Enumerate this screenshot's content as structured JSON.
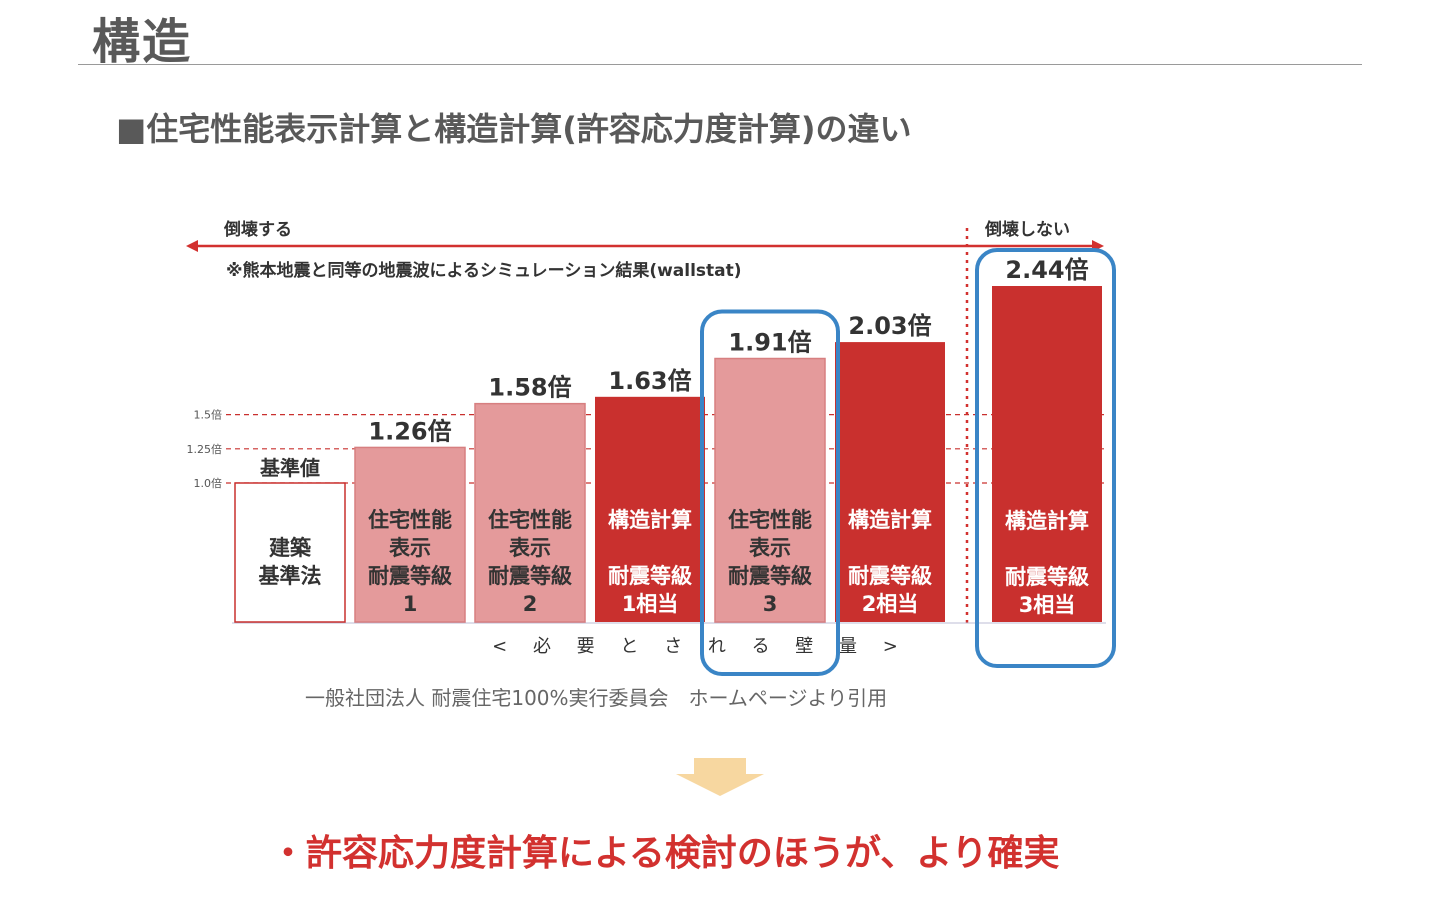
{
  "header": {
    "title": "構造",
    "subtitle": "■住宅性能表示計算と構造計算(許容応力度計算)の違い"
  },
  "chart_data": {
    "type": "bar",
    "unit_suffix": "倍",
    "top_left_label": "倒壊する",
    "top_right_label": "倒壊しない",
    "simulation_note": "※熊本地震と同等の地震波によるシミュレーション結果(wallstat)",
    "xlabel": "< 必 要 と さ れ る 壁 量 >",
    "reference_lines": [
      {
        "value": 1.5,
        "label": "1.5倍"
      },
      {
        "value": 1.25,
        "label": "1.25倍"
      },
      {
        "value": 1.0,
        "label": "1.0倍"
      }
    ],
    "bars": [
      {
        "value": 1.0,
        "value_label": "基準値",
        "lines": [
          "建築",
          "基準法"
        ],
        "style": "outline"
      },
      {
        "value": 1.26,
        "value_label": "1.26倍",
        "lines": [
          "住宅性能",
          "表示",
          "耐震等級",
          "1"
        ],
        "style": "light"
      },
      {
        "value": 1.58,
        "value_label": "1.58倍",
        "lines": [
          "住宅性能",
          "表示",
          "耐震等級",
          "2"
        ],
        "style": "light"
      },
      {
        "value": 1.63,
        "value_label": "1.63倍",
        "lines": [
          "構造計算",
          "",
          "耐震等級",
          "1相当"
        ],
        "style": "dark"
      },
      {
        "value": 1.91,
        "value_label": "1.91倍",
        "lines": [
          "住宅性能",
          "表示",
          "耐震等級",
          "3"
        ],
        "style": "light",
        "highlight": true
      },
      {
        "value": 2.03,
        "value_label": "2.03倍",
        "lines": [
          "構造計算",
          "",
          "耐震等級",
          "2相当"
        ],
        "style": "dark"
      },
      {
        "value": 2.44,
        "value_label": "2.44倍",
        "lines": [
          "構造計算",
          "",
          "耐震等級",
          "3相当"
        ],
        "style": "dark",
        "highlight": true
      }
    ]
  },
  "source_note": "一般社団法人 耐震住宅100%実行委員会　ホームページより引用",
  "conclusion": "・許容応力度計算による検討のほうが、より確実",
  "colors": {
    "dark_bar": "#c9302e",
    "light_bar": "#e49a9b",
    "light_bar_border": "#d77f80",
    "outline_bar_border": "#c9302e",
    "highlight": "#3a85c6",
    "arrow": "#f7d7a0",
    "accent": "#d2312f"
  }
}
